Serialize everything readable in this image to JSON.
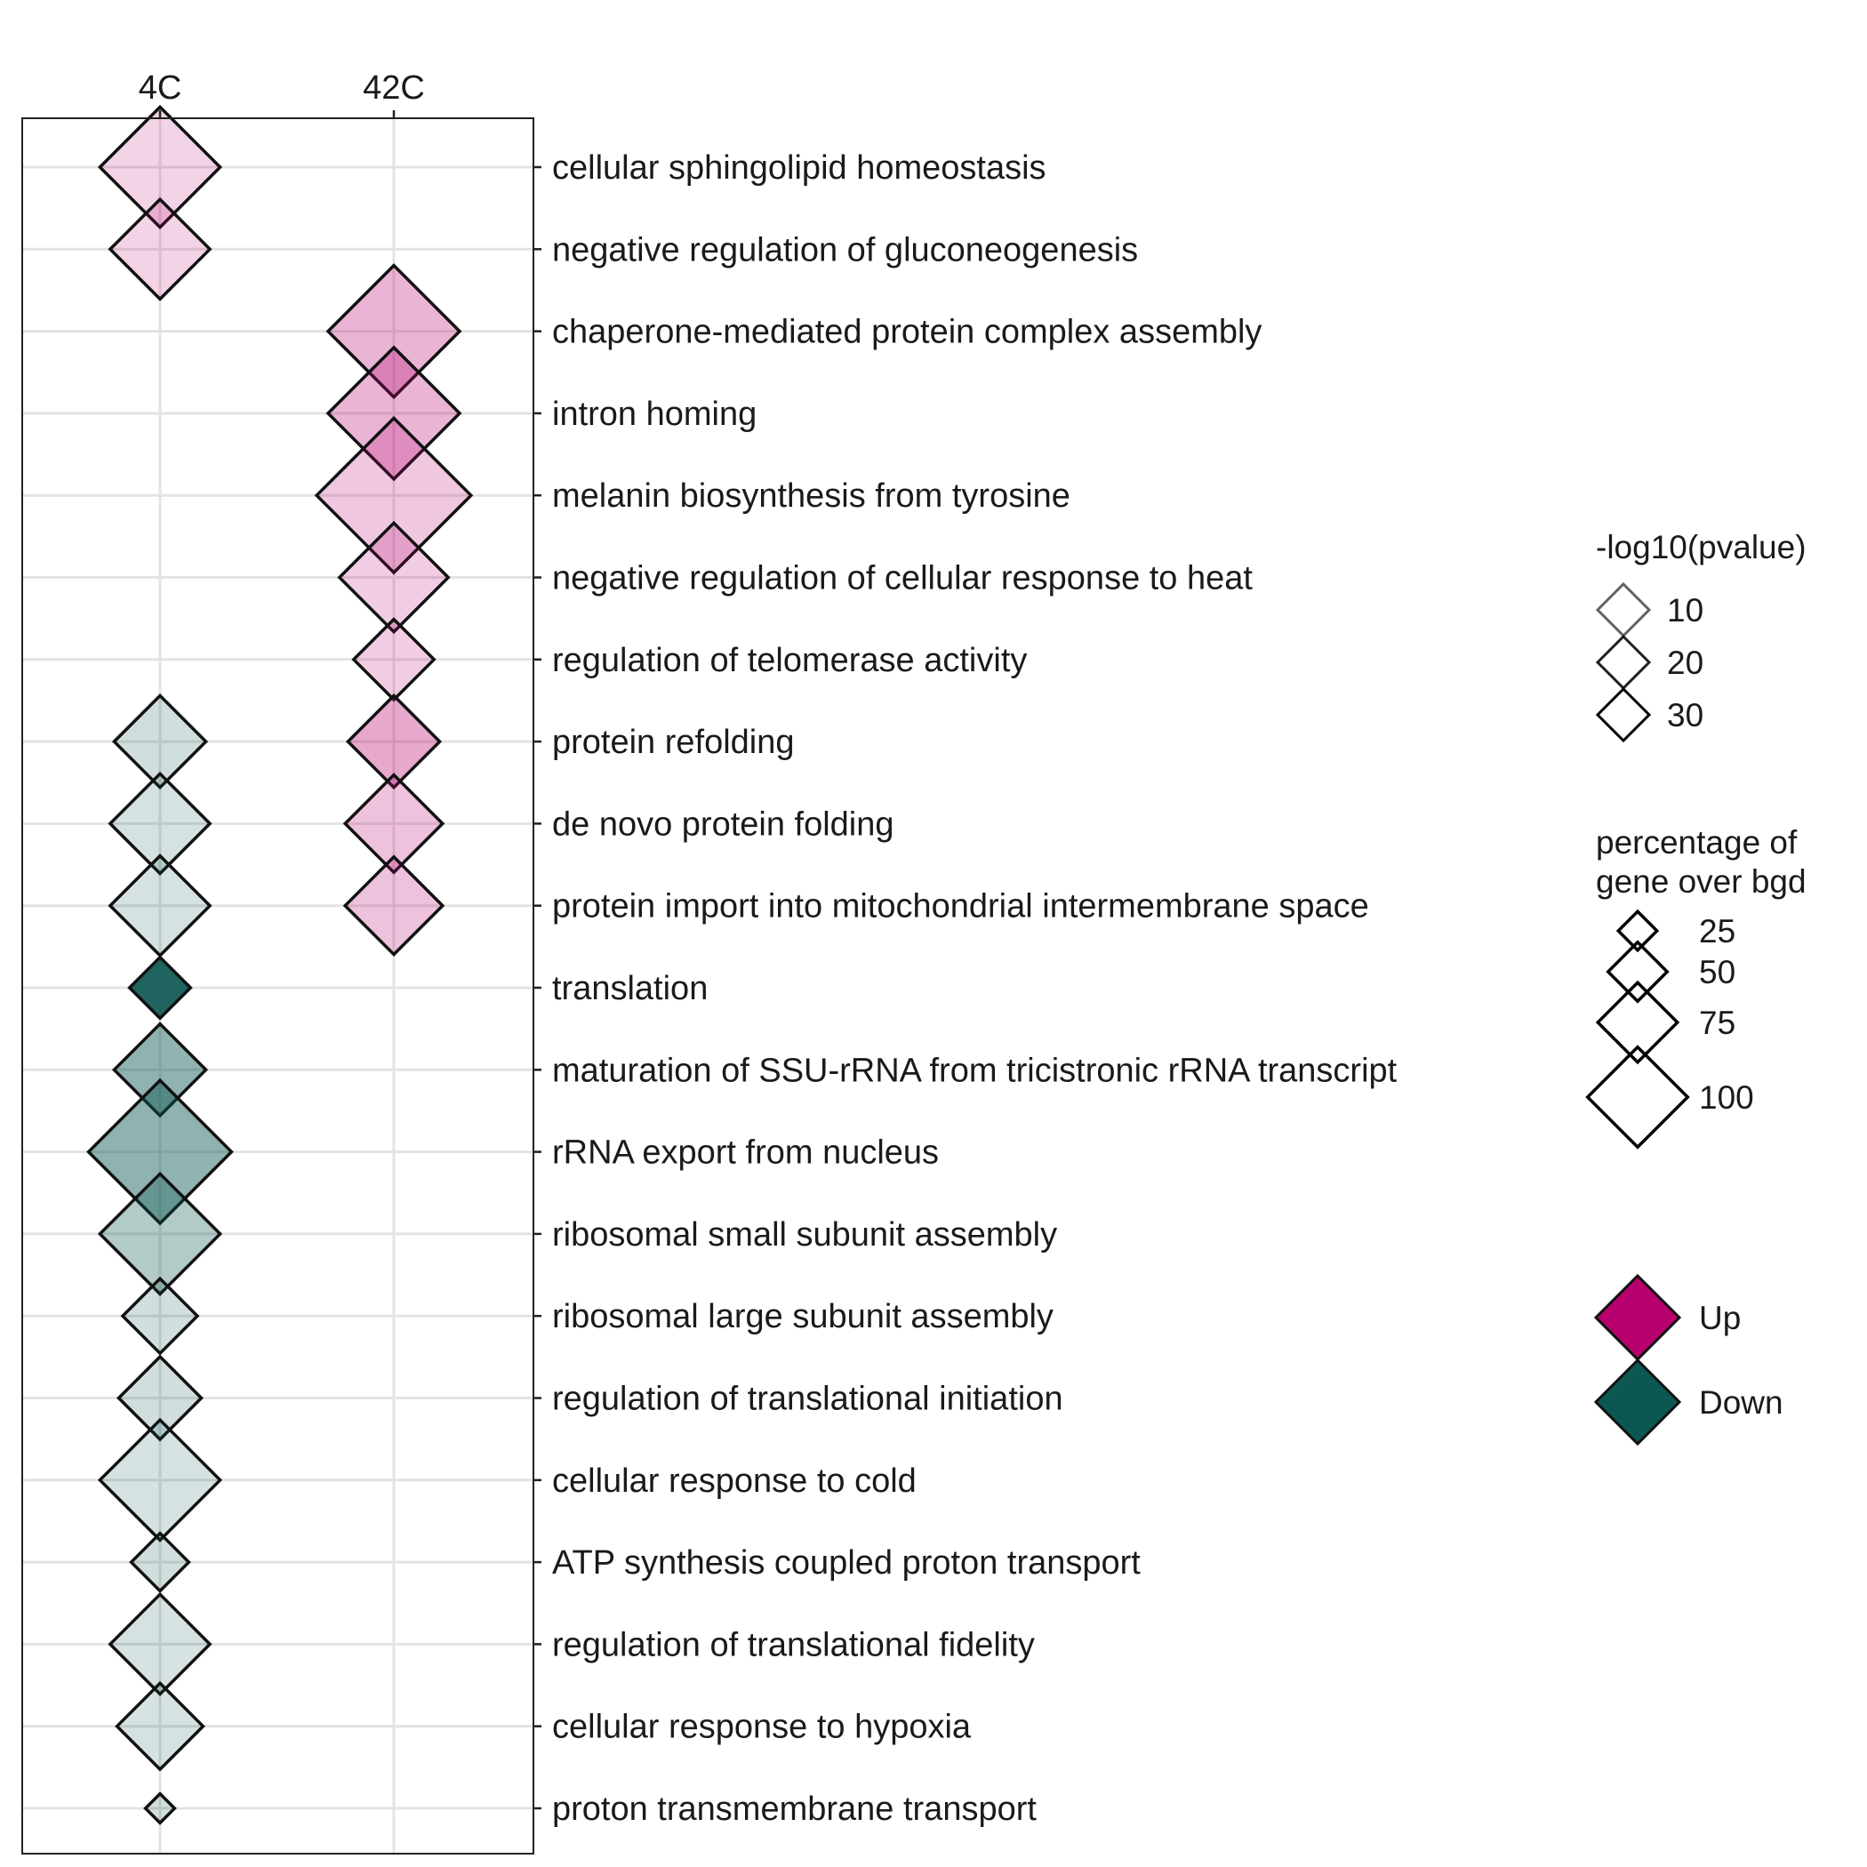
{
  "chart_data": {
    "type": "bubble",
    "columns": [
      "4C",
      "42C"
    ],
    "terms": [
      "cellular sphingolipid homeostasis",
      "negative regulation of gluconeogenesis",
      "chaperone-mediated protein complex assembly",
      "intron homing",
      "melanin biosynthesis from tyrosine",
      "negative regulation of cellular response to heat",
      "regulation of telomerase activity",
      "protein refolding",
      "de novo protein folding",
      "protein import into mitochondrial intermembrane space",
      "translation",
      "maturation of SSU-rRNA from tricistronic rRNA transcript",
      "rRNA export from nucleus",
      "ribosomal small subunit assembly",
      "ribosomal large subunit assembly",
      "regulation of translational initiation",
      "cellular response to cold",
      "ATP synthesis coupled proton transport",
      "regulation of translational fidelity",
      "cellular response to hypoxia",
      "proton transmembrane transport"
    ],
    "points": [
      {
        "term": "cellular sphingolipid homeostasis",
        "column": "4C",
        "direction": "Up",
        "pct_gene_over_bgd": 90,
        "neg_log10_pvalue": 3
      },
      {
        "term": "negative regulation of gluconeogenesis",
        "column": "4C",
        "direction": "Up",
        "pct_gene_over_bgd": 72,
        "neg_log10_pvalue": 3
      },
      {
        "term": "chaperone-mediated protein complex assembly",
        "column": "42C",
        "direction": "Up",
        "pct_gene_over_bgd": 100,
        "neg_log10_pvalue": 8
      },
      {
        "term": "intron homing",
        "column": "42C",
        "direction": "Up",
        "pct_gene_over_bgd": 100,
        "neg_log10_pvalue": 8
      },
      {
        "term": "melanin biosynthesis from tyrosine",
        "column": "42C",
        "direction": "Up",
        "pct_gene_over_bgd": 120,
        "neg_log10_pvalue": 5
      },
      {
        "term": "negative regulation of cellular response to heat",
        "column": "42C",
        "direction": "Up",
        "pct_gene_over_bgd": 80,
        "neg_log10_pvalue": 4
      },
      {
        "term": "regulation of telomerase activity",
        "column": "42C",
        "direction": "Up",
        "pct_gene_over_bgd": 55,
        "neg_log10_pvalue": 4
      },
      {
        "term": "protein refolding",
        "column": "4C",
        "direction": "Down",
        "pct_gene_over_bgd": 65,
        "neg_log10_pvalue": 4
      },
      {
        "term": "protein refolding",
        "column": "42C",
        "direction": "Up",
        "pct_gene_over_bgd": 65,
        "neg_log10_pvalue": 10
      },
      {
        "term": "de novo protein folding",
        "column": "4C",
        "direction": "Down",
        "pct_gene_over_bgd": 72,
        "neg_log10_pvalue": 3
      },
      {
        "term": "de novo protein folding",
        "column": "42C",
        "direction": "Up",
        "pct_gene_over_bgd": 70,
        "neg_log10_pvalue": 6
      },
      {
        "term": "protein import into mitochondrial intermembrane space",
        "column": "4C",
        "direction": "Down",
        "pct_gene_over_bgd": 72,
        "neg_log10_pvalue": 3
      },
      {
        "term": "protein import into mitochondrial intermembrane space",
        "column": "42C",
        "direction": "Up",
        "pct_gene_over_bgd": 70,
        "neg_log10_pvalue": 6
      },
      {
        "term": "translation",
        "column": "4C",
        "direction": "Down",
        "pct_gene_over_bgd": 38,
        "neg_log10_pvalue": 35
      },
      {
        "term": "maturation of SSU-rRNA from tricistronic rRNA transcript",
        "column": "4C",
        "direction": "Down",
        "pct_gene_over_bgd": 65,
        "neg_log10_pvalue": 15
      },
      {
        "term": "rRNA export from nucleus",
        "column": "4C",
        "direction": "Down",
        "pct_gene_over_bgd": 110,
        "neg_log10_pvalue": 15
      },
      {
        "term": "ribosomal small subunit assembly",
        "column": "4C",
        "direction": "Down",
        "pct_gene_over_bgd": 90,
        "neg_log10_pvalue": 9
      },
      {
        "term": "ribosomal large subunit assembly",
        "column": "4C",
        "direction": "Down",
        "pct_gene_over_bgd": 50,
        "neg_log10_pvalue": 4
      },
      {
        "term": "regulation of translational initiation",
        "column": "4C",
        "direction": "Down",
        "pct_gene_over_bgd": 57,
        "neg_log10_pvalue": 4
      },
      {
        "term": "cellular response to cold",
        "column": "4C",
        "direction": "Down",
        "pct_gene_over_bgd": 90,
        "neg_log10_pvalue": 3
      },
      {
        "term": "ATP synthesis coupled proton transport",
        "column": "4C",
        "direction": "Down",
        "pct_gene_over_bgd": 35,
        "neg_log10_pvalue": 4
      },
      {
        "term": "regulation of translational fidelity",
        "column": "4C",
        "direction": "Down",
        "pct_gene_over_bgd": 72,
        "neg_log10_pvalue": 3
      },
      {
        "term": "cellular response to hypoxia",
        "column": "4C",
        "direction": "Down",
        "pct_gene_over_bgd": 60,
        "neg_log10_pvalue": 3
      },
      {
        "term": "proton transmembrane transport",
        "column": "4C",
        "direction": "Down",
        "pct_gene_over_bgd": 10,
        "neg_log10_pvalue": 4
      }
    ],
    "legend": {
      "alpha_title": "-log10(pvalue)",
      "alpha_breaks": [
        10,
        20,
        30
      ],
      "size_title": [
        "percentage of",
        "gene over bgd"
      ],
      "size_breaks": [
        25,
        50,
        75,
        100
      ],
      "color_entries": [
        {
          "label": "Up",
          "color": "#b8006e"
        },
        {
          "label": "Down",
          "color": "#0d5752"
        }
      ]
    },
    "x_axis_position": "top",
    "y_axis_position": "right",
    "grid": true,
    "legend_position": "right"
  }
}
